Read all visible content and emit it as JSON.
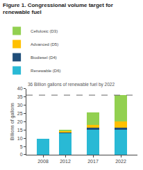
{
  "chart_data": {
    "type": "bar",
    "stacked": true,
    "title": "Figure 1. Congressional volume target for renewable fuel",
    "x": [
      2008,
      2012,
      2017,
      2022
    ],
    "xlim": [
      2005,
      2025
    ],
    "xticks": [
      2008,
      2012,
      2017,
      2022
    ],
    "ylabel": "Billions of gallons",
    "ylim": [
      0,
      40
    ],
    "yticks": [
      0,
      5,
      10,
      15,
      20,
      25,
      30,
      35,
      40
    ],
    "grid": false,
    "legend": "top",
    "series": [
      {
        "name": "Renewable (D6)",
        "color": "#29b9d5",
        "values": [
          9.5,
          13.2,
          15.2,
          15.2
        ]
      },
      {
        "name": "Biodiesel (D4)",
        "color": "#1f4e79",
        "values": [
          0.0,
          0.5,
          1.0,
          1.0
        ]
      },
      {
        "name": "Advanced (D5)",
        "color": "#ffc000",
        "values": [
          0.0,
          0.5,
          2.0,
          4.0
        ]
      },
      {
        "name": "Cellulosic (D3)",
        "color": "#92d050",
        "values": [
          0.0,
          1.0,
          7.3,
          16.0
        ]
      }
    ],
    "reference_line": {
      "y": 36,
      "label": "36 Billion gallons of renewable fuel by 2022",
      "line_style": "dashed"
    }
  }
}
